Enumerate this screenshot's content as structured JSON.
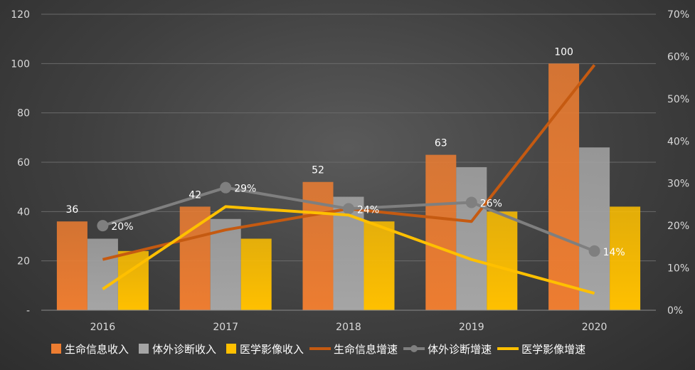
{
  "chart_data": {
    "type": "bar",
    "categories": [
      "2016",
      "2017",
      "2018",
      "2019",
      "2020"
    ],
    "series": [
      {
        "name": "生命信息收入",
        "kind": "bar",
        "axis": "left",
        "color": "#ed7d31",
        "values": [
          36,
          42,
          52,
          63,
          100
        ]
      },
      {
        "name": "体外诊断收入",
        "kind": "bar",
        "axis": "left",
        "color": "#a5a5a5",
        "values": [
          29,
          37,
          46,
          58,
          66
        ]
      },
      {
        "name": "医学影像收入",
        "kind": "bar",
        "axis": "left",
        "color": "#ffc000",
        "values": [
          24,
          29,
          36,
          40,
          42
        ]
      },
      {
        "name": "生命信息增速",
        "kind": "line",
        "axis": "right",
        "color": "#c55a11",
        "values": [
          0.12,
          0.19,
          0.24,
          0.21,
          0.58
        ]
      },
      {
        "name": "体外诊断增速",
        "kind": "line",
        "axis": "right",
        "color": "#7f7f7f",
        "marker": true,
        "values": [
          0.2,
          0.29,
          0.24,
          0.255,
          0.14
        ]
      },
      {
        "name": "医学影像增速",
        "kind": "line",
        "axis": "right",
        "color": "#ffc000",
        "values": [
          0.05,
          0.245,
          0.225,
          0.12,
          0.04
        ]
      }
    ],
    "bar_labels": {
      "series": "生命信息收入",
      "labels": [
        "36",
        "42",
        "52",
        "63",
        "100"
      ]
    },
    "line_labels": {
      "series": "体外诊断增速",
      "labels": [
        "20%",
        "29%",
        "24%",
        "26%",
        "14%"
      ]
    },
    "y_left": {
      "ylim": [
        0,
        120
      ],
      "ticks": [
        "-",
        "20",
        "40",
        "60",
        "80",
        "100",
        "120"
      ]
    },
    "y_right": {
      "ylim": [
        0,
        0.7
      ],
      "ticks": [
        "0%",
        "10%",
        "20%",
        "30%",
        "40%",
        "50%",
        "60%",
        "70%"
      ]
    },
    "grid": true,
    "legend": "bottom"
  }
}
